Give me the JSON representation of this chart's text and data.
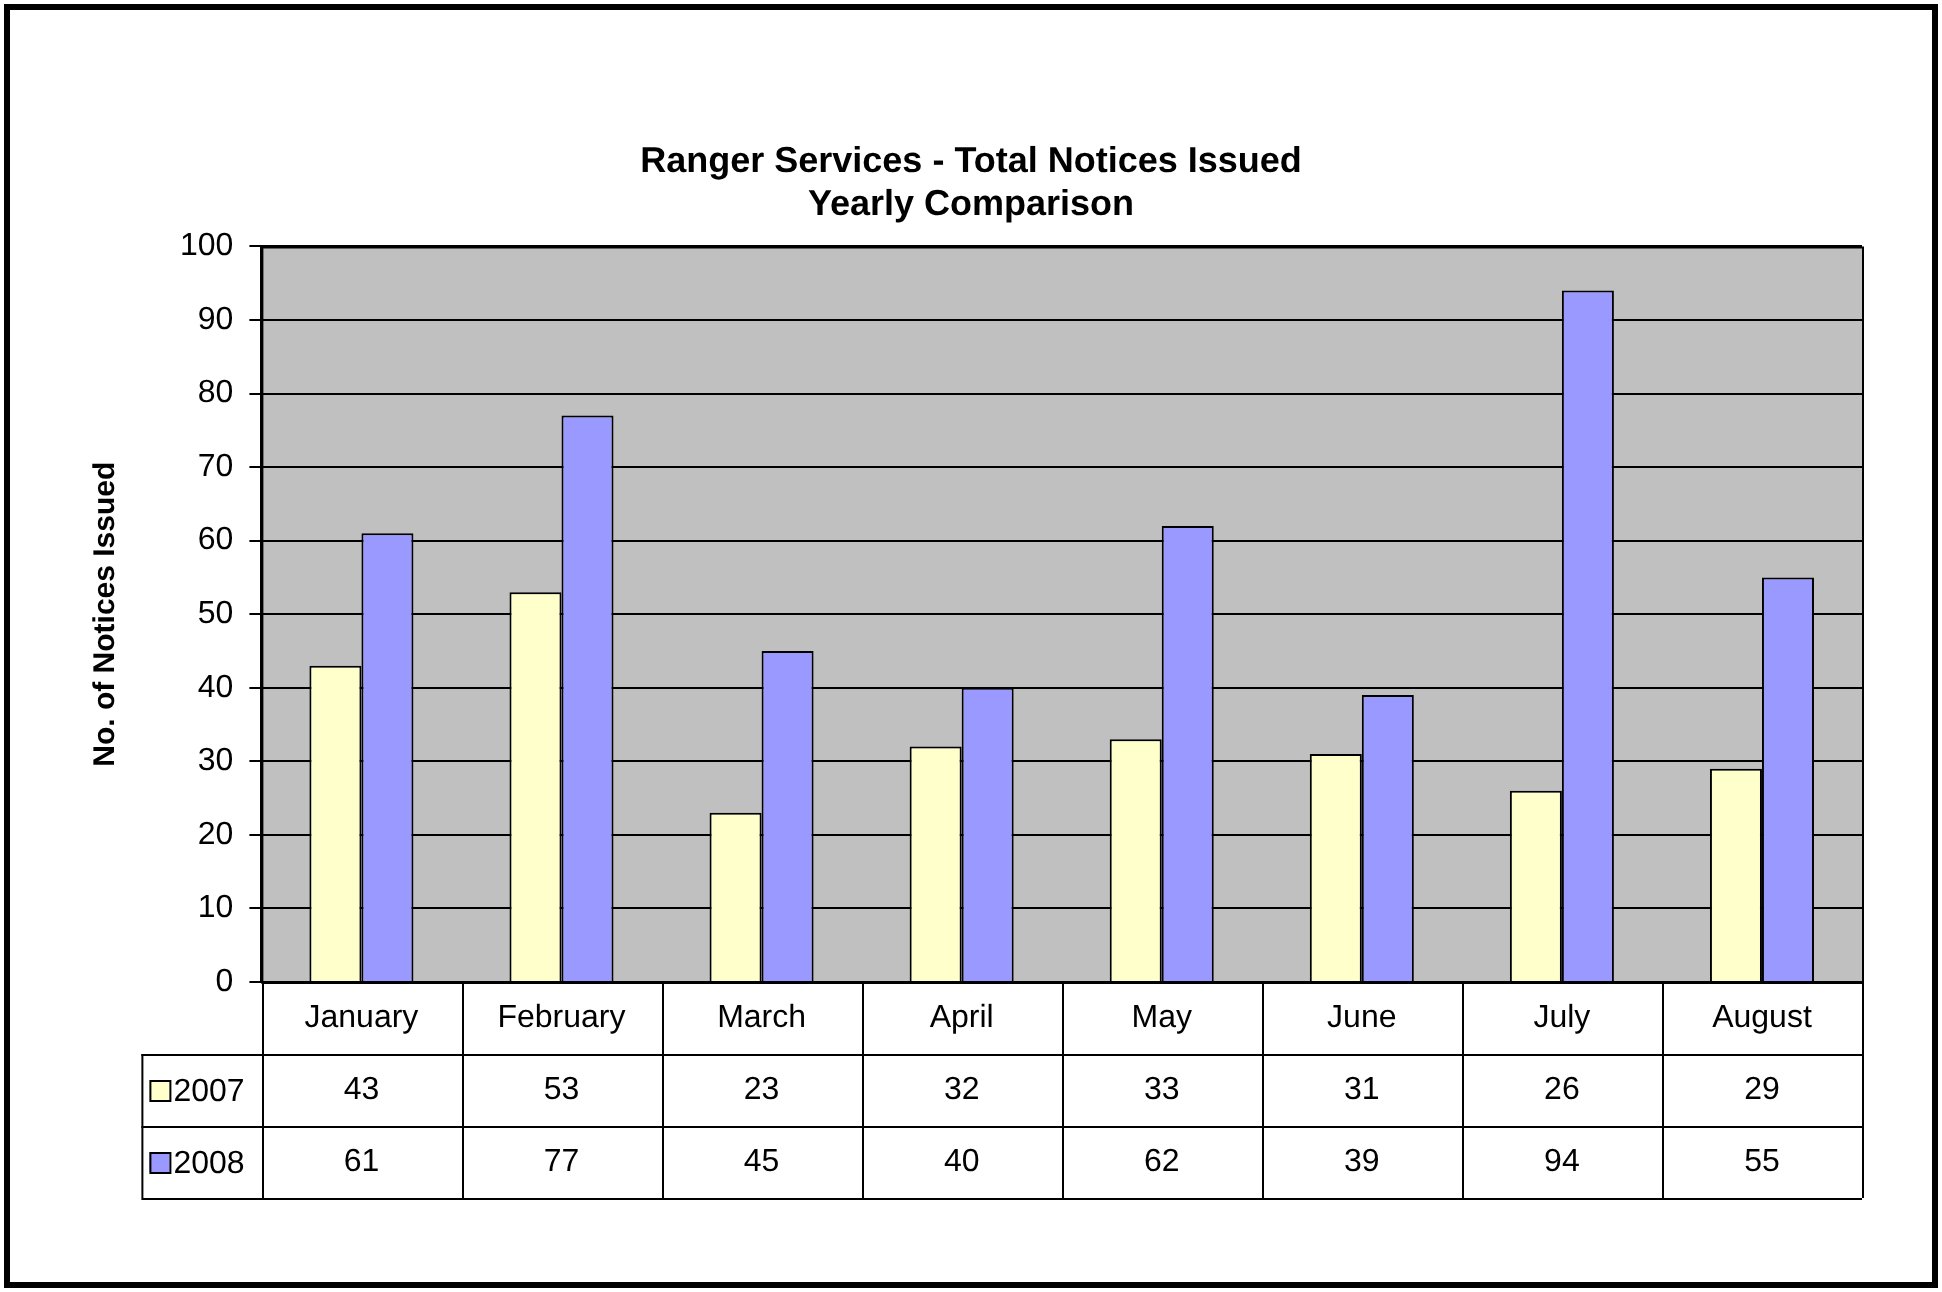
{
  "chart_data": {
    "type": "bar",
    "title": "Ranger Services - Total Notices Issued\nYearly Comparison",
    "ylabel": "No. of Notices Issued",
    "categories": [
      "January",
      "February",
      "March",
      "April",
      "May",
      "June",
      "July",
      "August"
    ],
    "series": [
      {
        "name": "2007",
        "color": "#ffffcc",
        "values": [
          43,
          53,
          23,
          32,
          33,
          31,
          26,
          29
        ]
      },
      {
        "name": "2008",
        "color": "#9999ff",
        "values": [
          61,
          77,
          45,
          40,
          62,
          39,
          94,
          55
        ]
      }
    ],
    "ylim": [
      0,
      100
    ],
    "yticks": [
      0,
      10,
      20,
      30,
      40,
      50,
      60,
      70,
      80,
      90,
      100
    ],
    "grid": "y",
    "legend": "bottom",
    "data_labels": true
  }
}
